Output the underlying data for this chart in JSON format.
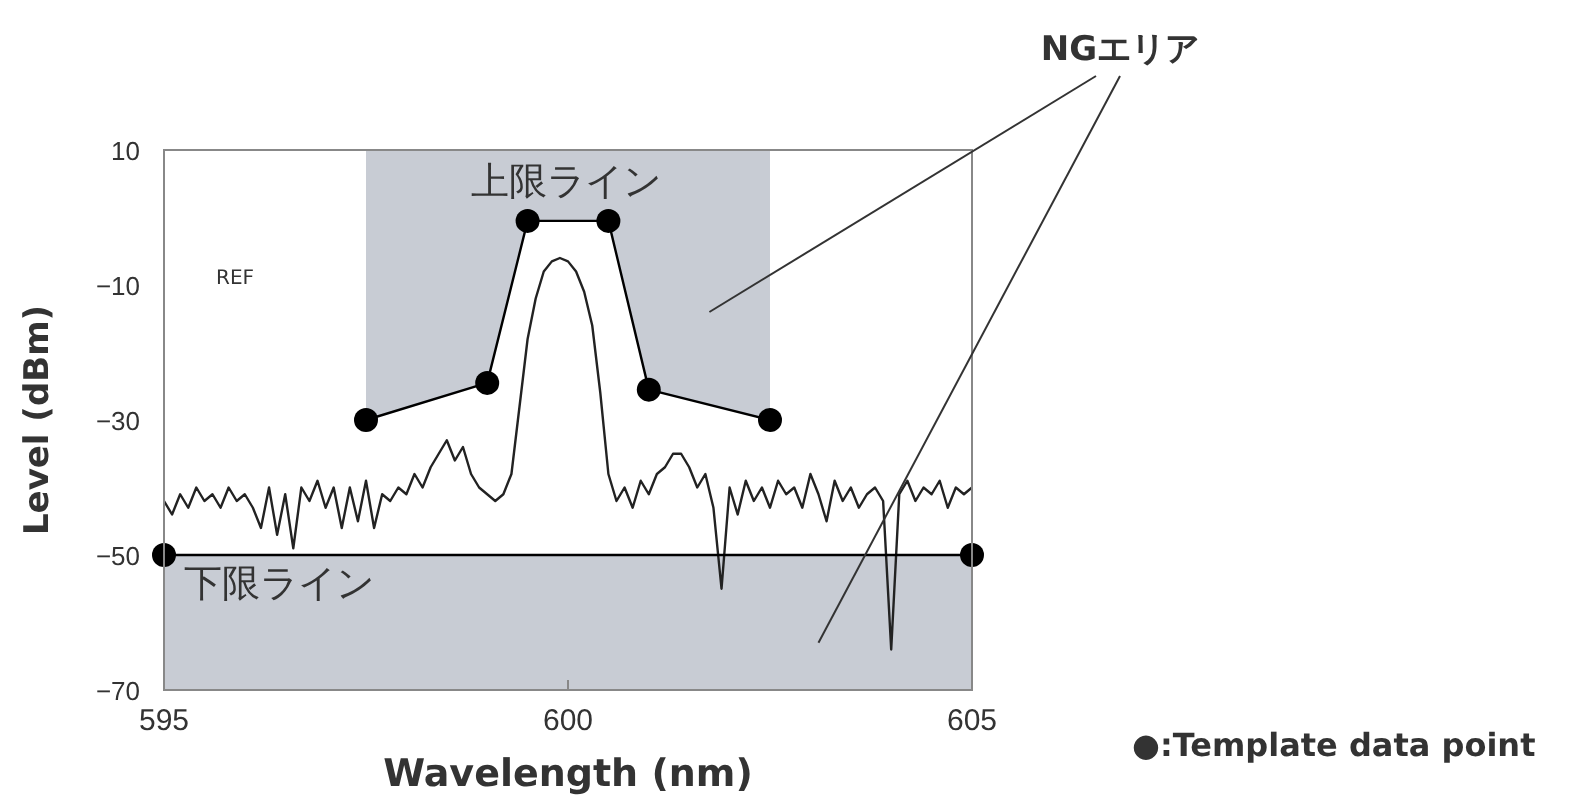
{
  "chart_data": {
    "type": "line",
    "xlabel": "Wavelength (nm)",
    "ylabel": "Level (dBm)",
    "xlim": [
      595,
      605
    ],
    "xticks": [
      595,
      600,
      605
    ],
    "ylim": [
      -70,
      10
    ],
    "yticks": [
      10,
      {
        "value": -10,
        "label": "−10"
      },
      {
        "value": -30,
        "label": "−30"
      },
      {
        "value": -50,
        "label": "−50"
      },
      {
        "value": -70,
        "label": "−70"
      }
    ],
    "grid": false,
    "series": [
      {
        "color": "#222222",
        "marker": "none",
        "x": [
          595.0,
          595.1,
          595.2,
          595.3,
          595.4,
          595.5,
          595.6,
          595.7,
          595.8,
          595.9,
          596.0,
          596.1,
          596.2,
          596.3,
          596.4,
          596.5,
          596.6,
          596.7,
          596.8,
          596.9,
          597.0,
          597.1,
          597.2,
          597.3,
          597.4,
          597.5,
          597.6,
          597.7,
          597.8,
          597.9,
          598.0,
          598.1,
          598.2,
          598.3,
          598.4,
          598.5,
          598.6,
          598.7,
          598.8,
          598.9,
          599.0,
          599.1,
          599.2,
          599.3,
          599.4,
          599.5,
          599.6,
          599.7,
          599.8,
          599.9,
          600.0,
          600.1,
          600.2,
          600.3,
          600.4,
          600.5,
          600.6,
          600.7,
          600.8,
          600.9,
          601.0,
          601.1,
          601.2,
          601.3,
          601.4,
          601.5,
          601.6,
          601.7,
          601.8,
          601.9,
          602.0,
          602.1,
          602.2,
          602.3,
          602.4,
          602.5,
          602.6,
          602.7,
          602.8,
          602.9,
          603.0,
          603.1,
          603.2,
          603.3,
          603.4,
          603.5,
          603.6,
          603.7,
          603.8,
          603.9,
          604.0,
          604.1,
          604.2,
          604.3,
          604.4,
          604.5,
          604.6,
          604.7,
          604.8,
          604.9,
          605.0
        ],
        "values": [
          -42,
          -44,
          -41,
          -43,
          -40,
          -42,
          -41,
          -43,
          -40,
          -42,
          -41,
          -43,
          -46,
          -40,
          -47,
          -41,
          -49,
          -40,
          -42,
          -39,
          -43,
          -40,
          -46,
          -40,
          -45,
          -39,
          -46,
          -41,
          -42,
          -40,
          -41,
          -38,
          -40,
          -37,
          -35,
          -33,
          -36,
          -34,
          -38,
          -40,
          -41,
          -42,
          -41,
          -38,
          -28,
          -18,
          -12,
          -8,
          -6.5,
          -6,
          -6.5,
          -8,
          -11,
          -16,
          -26,
          -38,
          -42,
          -40,
          -43,
          -39,
          -41,
          -38,
          -37,
          -35,
          -35,
          -37,
          -40,
          -38,
          -43,
          -55,
          -40,
          -44,
          -39,
          -42,
          -40,
          -43,
          -39,
          -41,
          -40,
          -43,
          -38,
          -41,
          -45,
          -39,
          -42,
          -40,
          -43,
          -41,
          -40,
          -42,
          -64,
          -41,
          -39,
          -42,
          -40,
          -41,
          -39,
          -43,
          -40,
          -41,
          -40
        ]
      },
      {
        "color": "#000000",
        "marker": "circle",
        "x": [
          597.5,
          599,
          599.5,
          600.5,
          601,
          602.5
        ],
        "values": [
          -30,
          -24.5,
          -0.5,
          -0.5,
          -25.5,
          -30
        ],
        "lower": [
          -30,
          -24.5,
          -0.5,
          -0.5,
          -25.5,
          -30
        ],
        "upper": [
          10,
          10,
          10,
          10,
          10,
          10
        ]
      },
      {
        "color": "#000000",
        "marker": "circle",
        "x": [
          595,
          605
        ],
        "values": [
          -50,
          -50
        ]
      }
    ],
    "bands": [
      {
        "axis": "y",
        "from": -70,
        "to": -50,
        "color": "#c8ccd4"
      }
    ],
    "annotations": [
      "上限ライン",
      "下限ライン",
      "REF",
      "NGエリア",
      "●:Template data point"
    ]
  }
}
